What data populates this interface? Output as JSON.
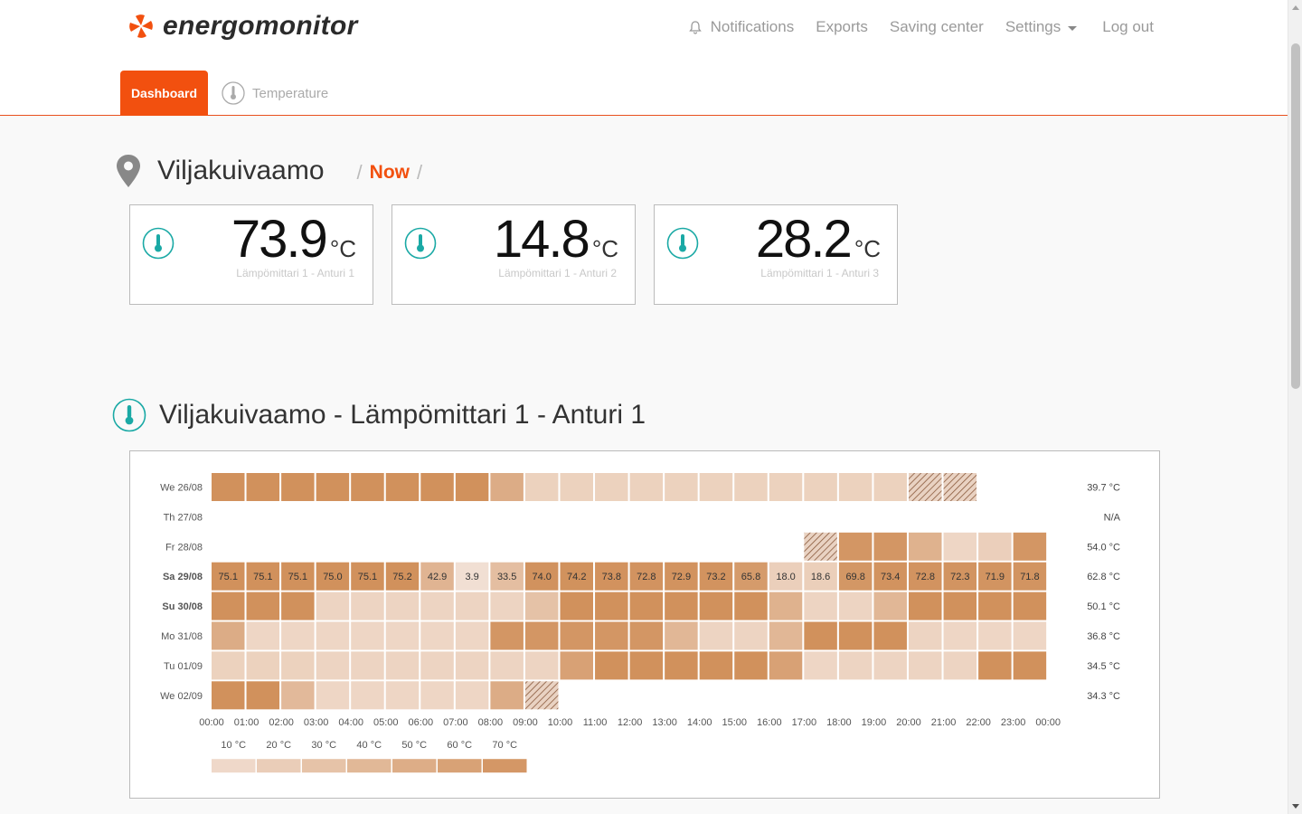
{
  "brand": {
    "name": "energomonitor",
    "accent": "#f2500f"
  },
  "nav": {
    "notifications": "Notifications",
    "exports": "Exports",
    "saving_center": "Saving center",
    "settings": "Settings",
    "logout": "Log out"
  },
  "tabs": {
    "dashboard": "Dashboard",
    "temperature": "Temperature"
  },
  "location": {
    "title": "Viljakuivaamo",
    "crumb": "Now"
  },
  "sensors": [
    {
      "value": "73.9",
      "unit": "°C",
      "label": "Lämpömittari 1 - Anturi 1"
    },
    {
      "value": "14.8",
      "unit": "°C",
      "label": "Lämpömittari 1 - Anturi 2"
    },
    {
      "value": "28.2",
      "unit": "°C",
      "label": "Lämpömittari 1 - Anturi 3"
    }
  ],
  "chart_title": "Viljakuivaamo - Lämpömittari 1 - Anturi 1",
  "chart_data": {
    "type": "heatmap",
    "x_labels": [
      "00:00",
      "01:00",
      "02:00",
      "03:00",
      "04:00",
      "05:00",
      "06:00",
      "07:00",
      "08:00",
      "09:00",
      "10:00",
      "11:00",
      "12:00",
      "13:00",
      "14:00",
      "15:00",
      "16:00",
      "17:00",
      "18:00",
      "19:00",
      "20:00",
      "21:00",
      "22:00",
      "23:00",
      "00:00"
    ],
    "rows": [
      {
        "day": "We 26/08",
        "bold": false,
        "summary": "39.7 °C",
        "cells": [
          75,
          75,
          75,
          75,
          75,
          75,
          75,
          75,
          50,
          16,
          16,
          16,
          16,
          16,
          16,
          16,
          16,
          16,
          16,
          16,
          "p",
          "p",
          null,
          null
        ]
      },
      {
        "day": "Th 27/08",
        "bold": false,
        "summary": "N/A",
        "cells": [
          null,
          null,
          null,
          null,
          null,
          null,
          null,
          null,
          null,
          null,
          null,
          null,
          null,
          null,
          null,
          null,
          null,
          null,
          null,
          null,
          null,
          null,
          null,
          null
        ]
      },
      {
        "day": "Fr 28/08",
        "bold": false,
        "summary": "54.0 °C",
        "cells": [
          null,
          null,
          null,
          null,
          null,
          null,
          null,
          null,
          null,
          null,
          null,
          null,
          null,
          null,
          null,
          null,
          null,
          "p",
          70,
          70,
          45,
          12,
          18,
          70
        ]
      },
      {
        "day": "Sa 29/08",
        "bold": true,
        "summary": "62.8 °C",
        "cells": [
          75.1,
          75.1,
          75.1,
          75.0,
          75.1,
          75.2,
          42.9,
          3.9,
          33.5,
          74.0,
          74.2,
          73.8,
          72.8,
          72.9,
          73.2,
          65.8,
          18.0,
          18.6,
          69.8,
          73.4,
          72.8,
          72.3,
          71.9,
          71.8
        ],
        "labels": true
      },
      {
        "day": "Su 30/08",
        "bold": true,
        "summary": "50.1 °C",
        "cells": [
          75,
          75,
          75,
          14,
          14,
          14,
          14,
          14,
          14,
          30,
          75,
          75,
          75,
          75,
          75,
          75,
          45,
          14,
          14,
          40,
          75,
          75,
          75,
          75
        ]
      },
      {
        "day": "Mo 31/08",
        "bold": false,
        "summary": "36.8 °C",
        "cells": [
          50,
          12,
          12,
          12,
          12,
          12,
          12,
          12,
          70,
          70,
          70,
          70,
          70,
          40,
          14,
          14,
          40,
          75,
          75,
          75,
          14,
          12,
          12,
          12
        ]
      },
      {
        "day": "Tu 01/09",
        "bold": false,
        "summary": "34.5 °C",
        "cells": [
          16,
          16,
          16,
          14,
          14,
          14,
          14,
          14,
          14,
          14,
          60,
          75,
          75,
          75,
          75,
          75,
          60,
          12,
          14,
          14,
          14,
          14,
          75,
          75
        ]
      },
      {
        "day": "We 02/09",
        "bold": false,
        "summary": "34.3 °C",
        "cells": [
          75,
          75,
          38,
          12,
          12,
          12,
          12,
          12,
          50,
          "p",
          null,
          null,
          null,
          null,
          null,
          null,
          null,
          null,
          null,
          null,
          null,
          null,
          null,
          null
        ]
      }
    ],
    "legend": [
      "10 °C",
      "20 °C",
      "30 °C",
      "40 °C",
      "50 °C",
      "60 °C",
      "70 °C"
    ],
    "scale_min": 0,
    "scale_max": 75,
    "color_low": "#f3e3d9",
    "color_high": "#d1915c"
  }
}
